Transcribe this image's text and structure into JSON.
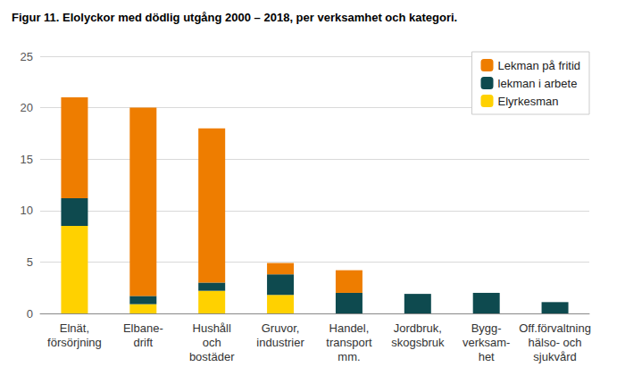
{
  "chart_data": {
    "type": "bar",
    "title": "Figur 11. Elolyckor med dödlig utgång 2000 – 2018, per verksamhet och kategori.",
    "categories": [
      "Elnät,\nförsörjning",
      "Elbane-\ndrift",
      "Hushåll\noch\nbostäder",
      "Gruvor,\nindustrier",
      "Handel,\ntransport\nmm.",
      "Jordbruk,\nskogsbruk",
      "Bygg-\nverksam-\nhet",
      "Off.förvaltning\nhälso- och\nsjukvård"
    ],
    "series": [
      {
        "name": "Elyrkesman",
        "color": "#ffd100",
        "values": [
          8.5,
          0.9,
          2.2,
          1.8,
          0,
          0,
          0,
          0
        ]
      },
      {
        "name": "lekman i arbete",
        "color": "#0e4a4f",
        "values": [
          2.7,
          0.8,
          0.8,
          2.0,
          2.0,
          1.9,
          2.0,
          1.1
        ]
      },
      {
        "name": "Lekman på fritid",
        "color": "#ee7d00",
        "values": [
          9.8,
          18.3,
          15.0,
          1.1,
          2.2,
          0,
          0,
          0
        ]
      }
    ],
    "stacked": true,
    "ylim": [
      0,
      25
    ],
    "yticks": [
      0,
      5,
      10,
      15,
      20,
      25
    ],
    "grid": true,
    "legend": "upper right"
  }
}
